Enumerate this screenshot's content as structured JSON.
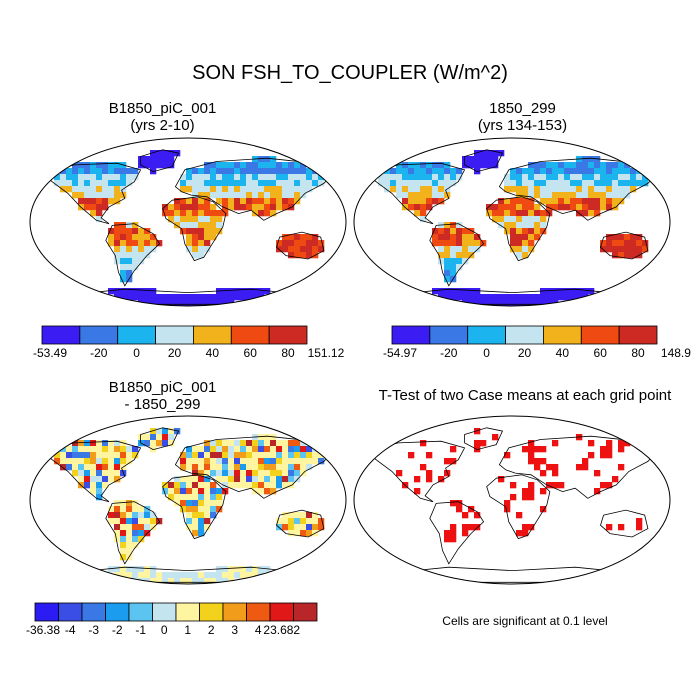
{
  "figure": {
    "title": "SON FSH_TO_COUPLER (W/m^2)"
  },
  "panels": {
    "case1": {
      "title_line1": "B1850_piC_001",
      "title_line2": "(yrs 2-10)",
      "colorbar": {
        "labels": [
          "-53.49",
          "-20",
          "0",
          "20",
          "40",
          "60",
          "80",
          "151.12"
        ],
        "colors": [
          "#3b1cf2",
          "#3a78e6",
          "#1cb4ef",
          "#c4e4f0",
          "#f2b21c",
          "#ee4a12",
          "#cc2a22"
        ]
      }
    },
    "case2": {
      "title_line1": "1850_299",
      "title_line2": "(yrs 134-153)",
      "colorbar": {
        "labels": [
          "-54.97",
          "-20",
          "0",
          "20",
          "40",
          "60",
          "80",
          "148.9"
        ],
        "colors": [
          "#3b1cf2",
          "#3a78e6",
          "#1cb4ef",
          "#c4e4f0",
          "#f2b21c",
          "#ee4a12",
          "#cc2a22"
        ]
      }
    },
    "diff": {
      "title_line1": "B1850_piC_001",
      "title_line2": "- 1850_299",
      "colorbar": {
        "labels": [
          "-36.38",
          "-4",
          "-3",
          "-2",
          "-1",
          "0",
          "1",
          "2",
          "3",
          "4",
          "23.682"
        ],
        "colors": [
          "#2a1cf2",
          "#3a4ee6",
          "#3a78e6",
          "#1c9cef",
          "#5cc4f0",
          "#c4e4f0",
          "#fff4a0",
          "#f2d21c",
          "#f29c1c",
          "#ee5a12",
          "#e01818",
          "#b8262a"
        ]
      }
    },
    "ttest": {
      "title": "T-Test of two Case means at each grid point",
      "note": "Cells are significant at 0.1 level",
      "color": "#ee1111"
    }
  }
}
